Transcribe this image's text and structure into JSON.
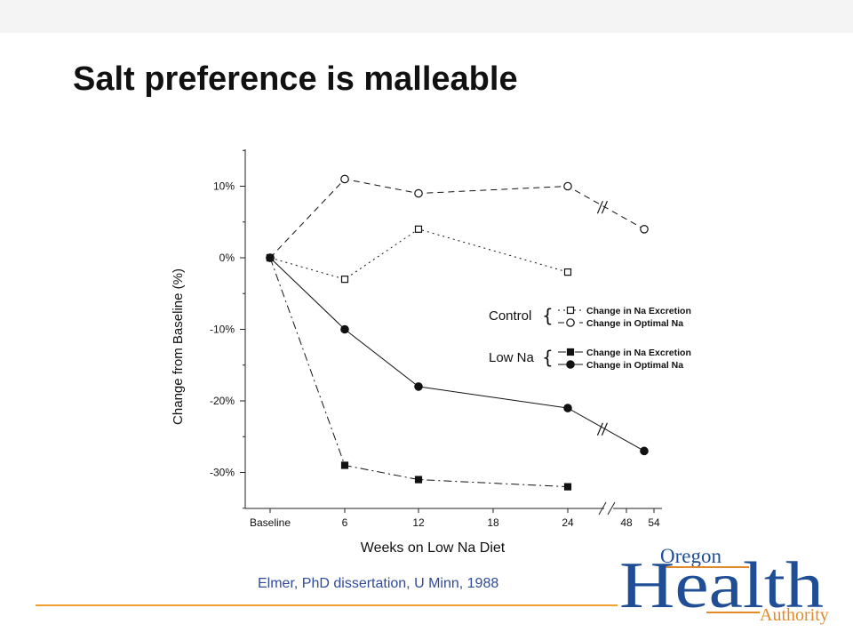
{
  "slide": {
    "title": "Salt preference is malleable",
    "citation": "Elmer, PhD dissertation, U Minn, 1988"
  },
  "logo": {
    "word_top": "Oregon",
    "word_main": "Health",
    "word_bottom": "Authority",
    "colors": {
      "blue": "#1f4e97",
      "orange": "#e08a2a"
    }
  },
  "chart_data": {
    "type": "line",
    "xlabel": "Weeks on Low Na Diet",
    "ylabel": "Change from Baseline (%)",
    "x_ticks": [
      "Baseline",
      "6",
      "12",
      "18",
      "24",
      "48",
      "54"
    ],
    "y_ticks": [
      "10%",
      "0%",
      "-10%",
      "-20%",
      "-30%"
    ],
    "y_tick_values": [
      10,
      0,
      -10,
      -20,
      -30
    ],
    "ylim": [
      -35,
      15
    ],
    "grid": false,
    "legend_position": "right",
    "legend_groups": [
      {
        "label": "Control",
        "entries": [
          "Change in Na Excretion",
          "Change in Optimal Na"
        ]
      },
      {
        "label": "Low Na",
        "entries": [
          "Change in Na Excretion",
          "Change in Optimal Na"
        ]
      }
    ],
    "series": [
      {
        "group": "Control",
        "name": "Change in Na Excretion",
        "marker": "open-square",
        "line": "dotted",
        "x": [
          "Baseline",
          "6",
          "12",
          "24"
        ],
        "values": [
          0,
          -3,
          4,
          -2
        ]
      },
      {
        "group": "Control",
        "name": "Change in Optimal Na",
        "marker": "open-circle",
        "line": "dashed",
        "x": [
          "Baseline",
          "6",
          "12",
          "24",
          "52"
        ],
        "values": [
          0,
          11,
          9,
          10,
          4
        ]
      },
      {
        "group": "Low Na",
        "name": "Change in Na Excretion",
        "marker": "filled-square",
        "line": "dash-dot",
        "x": [
          "Baseline",
          "6",
          "12",
          "24"
        ],
        "values": [
          0,
          -29,
          -31,
          -32
        ]
      },
      {
        "group": "Low Na",
        "name": "Change in Optimal Na",
        "marker": "filled-circle",
        "line": "solid",
        "x": [
          "Baseline",
          "6",
          "12",
          "24",
          "52"
        ],
        "values": [
          0,
          -10,
          -18,
          -21,
          -27
        ]
      }
    ]
  }
}
